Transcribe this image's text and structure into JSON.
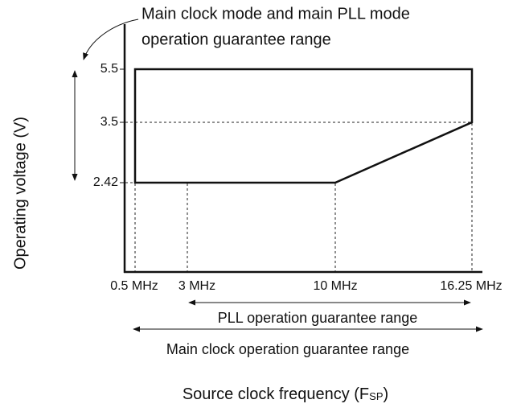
{
  "callout": {
    "lines": [
      "Main clock mode and main PLL mode",
      "operation guarantee range"
    ]
  },
  "y_axis": {
    "label": "Operating voltage (V)",
    "ticks": [
      "5.5",
      "3.5",
      "2.42"
    ]
  },
  "x_axis": {
    "label_parts": [
      "Source clock frequency (F",
      "SP",
      ")"
    ],
    "ticks": [
      "0.5 MHz",
      "3 MHz",
      "10 MHz",
      "16.25 MHz"
    ]
  },
  "ranges": [
    {
      "label": "PLL operation guarantee range"
    },
    {
      "label": "Main clock operation guarantee range"
    }
  ]
}
